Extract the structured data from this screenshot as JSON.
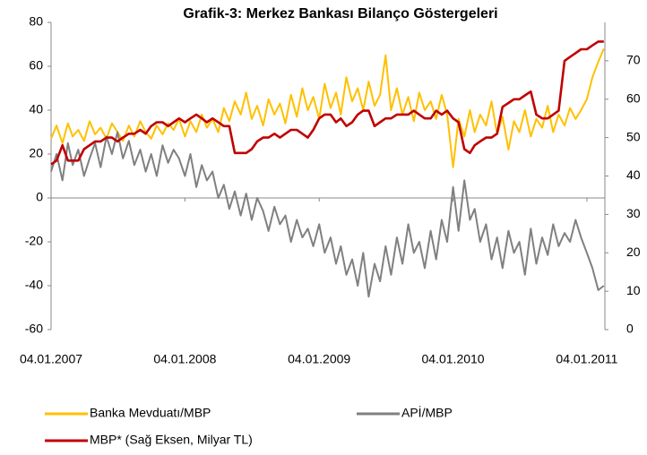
{
  "chart_data": {
    "type": "line",
    "title": "Grafik-3: Merkez Bankası Bilanço Göstergeleri",
    "x": [
      "04.01.2007",
      "19.01.2007",
      "04.02.2007",
      "19.02.2007",
      "04.03.2007",
      "19.03.2007",
      "04.04.2007",
      "19.04.2007",
      "04.05.2007",
      "19.05.2007",
      "04.06.2007",
      "19.06.2007",
      "04.07.2007",
      "19.07.2007",
      "04.08.2007",
      "19.08.2007",
      "04.09.2007",
      "19.09.2007",
      "04.10.2007",
      "19.10.2007",
      "04.11.2007",
      "19.11.2007",
      "04.12.2007",
      "19.12.2007",
      "04.01.2008",
      "19.01.2008",
      "04.02.2008",
      "19.02.2008",
      "04.03.2008",
      "19.03.2008",
      "04.04.2008",
      "19.04.2008",
      "04.05.2008",
      "19.05.2008",
      "04.06.2008",
      "19.06.2008",
      "04.07.2008",
      "19.07.2008",
      "04.08.2008",
      "19.08.2008",
      "04.09.2008",
      "19.09.2008",
      "04.10.2008",
      "19.10.2008",
      "04.11.2008",
      "19.11.2008",
      "04.12.2008",
      "19.12.2008",
      "04.01.2009",
      "19.01.2009",
      "04.02.2009",
      "19.02.2009",
      "04.03.2009",
      "19.03.2009",
      "04.04.2009",
      "19.04.2009",
      "04.05.2009",
      "19.05.2009",
      "04.06.2009",
      "19.06.2009",
      "04.07.2009",
      "19.07.2009",
      "04.08.2009",
      "19.08.2009",
      "04.09.2009",
      "19.09.2009",
      "04.10.2009",
      "19.10.2009",
      "04.11.2009",
      "19.11.2009",
      "04.12.2009",
      "19.12.2009",
      "04.01.2010",
      "19.01.2010",
      "04.02.2010",
      "19.02.2010",
      "04.03.2010",
      "19.03.2010",
      "04.04.2010",
      "19.04.2010",
      "04.05.2010",
      "19.05.2010",
      "04.06.2010",
      "19.06.2010",
      "04.07.2010",
      "19.07.2010",
      "04.08.2010",
      "19.08.2010",
      "04.09.2010",
      "19.09.2010",
      "04.10.2010",
      "19.10.2010",
      "04.11.2010",
      "19.11.2010",
      "04.12.2010",
      "19.12.2010",
      "04.01.2011",
      "19.01.2011",
      "04.02.2011",
      "19.02.2011"
    ],
    "xlim": [
      "04.01.2007",
      "22.02.2011"
    ],
    "xticks": [
      "04.01.2007",
      "04.01.2008",
      "04.01.2009",
      "04.01.2010",
      "04.01.2011"
    ],
    "ylim": [
      -60,
      80
    ],
    "yticks": [
      -60,
      -40,
      -20,
      0,
      20,
      40,
      60,
      80
    ],
    "y2lim": [
      0,
      80
    ],
    "y2ticks": [
      0,
      10,
      20,
      30,
      40,
      50,
      60,
      70
    ],
    "series": [
      {
        "name": "Banka Mevduatı/MBP",
        "color": "#ffc000",
        "values": [
          27,
          33,
          25,
          34,
          28,
          31,
          26,
          35,
          29,
          32,
          27,
          34,
          30,
          26,
          33,
          28,
          35,
          30,
          27,
          33,
          29,
          34,
          31,
          36,
          28,
          35,
          30,
          38,
          32,
          36,
          30,
          41,
          35,
          44,
          38,
          48,
          36,
          42,
          33,
          45,
          38,
          43,
          34,
          47,
          37,
          50,
          40,
          46,
          36,
          52,
          41,
          48,
          38,
          55,
          44,
          50,
          40,
          53,
          42,
          47,
          65,
          40,
          50,
          38,
          46,
          35,
          48,
          40,
          44,
          36,
          47,
          38,
          14,
          36,
          28,
          40,
          30,
          38,
          33,
          44,
          29,
          37,
          22,
          35,
          30,
          40,
          28,
          36,
          32,
          42,
          30,
          38,
          33,
          41,
          36,
          40,
          45,
          55,
          62,
          68
        ]
      },
      {
        "name": "APİ/MBP",
        "color": "#808080",
        "values": [
          12,
          20,
          8,
          25,
          15,
          22,
          10,
          18,
          25,
          14,
          28,
          20,
          30,
          18,
          26,
          15,
          22,
          12,
          20,
          10,
          24,
          16,
          22,
          18,
          10,
          20,
          5,
          15,
          8,
          12,
          0,
          6,
          -5,
          3,
          -8,
          2,
          -10,
          0,
          -6,
          -15,
          -4,
          -12,
          -8,
          -20,
          -10,
          -18,
          -14,
          -22,
          -12,
          -25,
          -18,
          -30,
          -22,
          -35,
          -28,
          -40,
          -25,
          -45,
          -30,
          -38,
          -22,
          -35,
          -18,
          -30,
          -12,
          -25,
          -20,
          -32,
          -15,
          -28,
          -10,
          -20,
          5,
          -15,
          8,
          -10,
          -5,
          -20,
          -12,
          -28,
          -18,
          -32,
          -15,
          -25,
          -20,
          -35,
          -14,
          -30,
          -18,
          -26,
          -12,
          -22,
          -16,
          -20,
          -10,
          -18,
          -25,
          -32,
          -42,
          -40
        ]
      },
      {
        "name": "MBP* (Sağ Eksen, Milyar TL)",
        "color": "#c00000",
        "axis": "y2",
        "values": [
          43,
          44,
          48,
          44,
          44,
          44,
          47,
          48,
          49,
          49,
          50,
          50,
          49,
          50,
          51,
          51,
          52,
          51,
          53,
          54,
          54,
          53,
          54,
          55,
          54,
          55,
          56,
          55,
          54,
          55,
          54,
          53,
          53,
          46,
          46,
          46,
          47,
          49,
          50,
          50,
          51,
          50,
          51,
          52,
          52,
          51,
          50,
          52,
          55,
          56,
          56,
          54,
          55,
          53,
          54,
          56,
          57,
          57,
          53,
          54,
          55,
          55,
          56,
          56,
          56,
          57,
          56,
          55,
          55,
          57,
          56,
          57,
          55,
          54,
          47,
          46,
          48,
          49,
          50,
          50,
          51,
          58,
          59,
          60,
          60,
          61,
          62,
          56,
          55,
          55,
          56,
          57,
          70,
          71,
          72,
          73,
          73,
          74,
          75,
          75
        ]
      }
    ]
  }
}
